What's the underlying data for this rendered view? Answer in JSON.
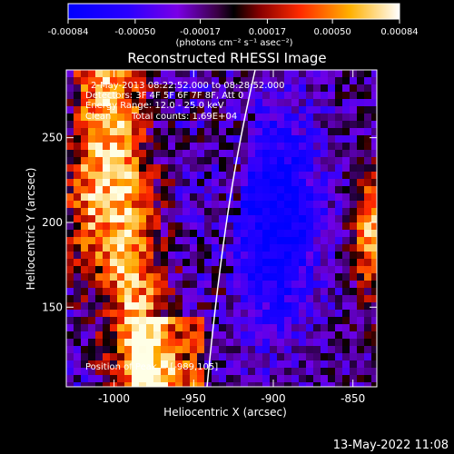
{
  "colorbar": {
    "ticks": [
      "-0.00084",
      "-0.00050",
      "-0.00017",
      "0.00017",
      "0.00050",
      "0.00084"
    ],
    "unit_label": "(photons cm⁻² s⁻¹ asec⁻²)",
    "range": [
      -0.00084,
      0.00084
    ]
  },
  "chart_data": {
    "type": "heatmap",
    "title": "Reconstructed RHESSI Image",
    "xlabel": "Heliocentric X (arcsec)",
    "ylabel": "Heliocentric Y (arcsec)",
    "xlim": [
      -1030,
      -835
    ],
    "ylim": [
      103,
      290
    ],
    "x_ticks": [
      "-1000",
      "-950",
      "-900",
      "-850"
    ],
    "y_ticks": [
      "150",
      "200",
      "250"
    ],
    "x_tick_values": [
      -1000,
      -950,
      -900,
      -850
    ],
    "y_tick_values": [
      150,
      200,
      250
    ],
    "annotations": {
      "time_range": "2-May-2013 08:22:52.000 to 08:28:52.000",
      "detectors": "Detectors: 3F 4F 5F 6F 7F 8F, Att 0",
      "energy": "Energy Range: 12.0 - 25.0 keV",
      "method": "Clean",
      "counts": "Total counts: 1.69E+04",
      "peak": "Position of Peak = [-989,105]"
    }
  },
  "footer": {
    "timestamp": "13-May-2022 11:08"
  }
}
